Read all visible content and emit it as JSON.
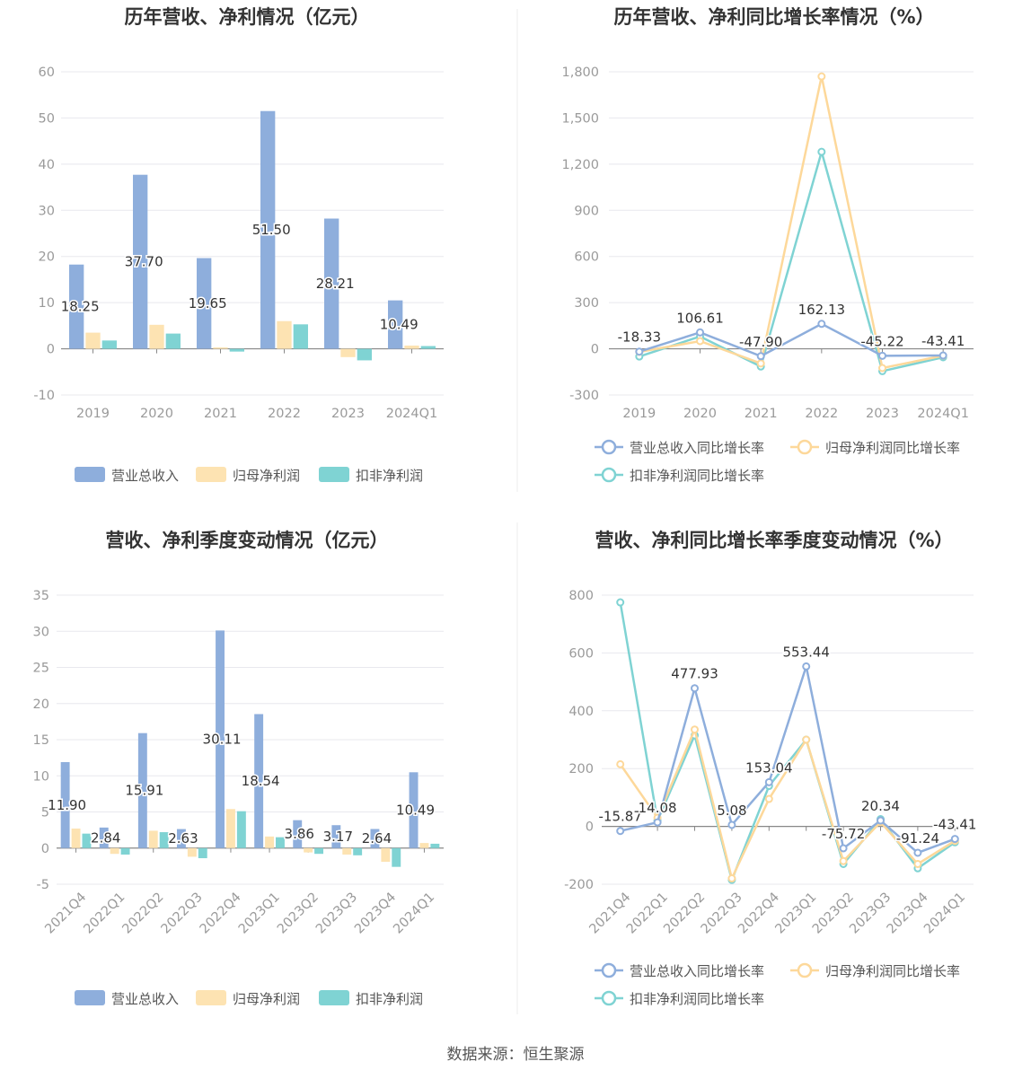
{
  "source": "数据来源：恒生聚源",
  "colors": {
    "revenue": "#8eaedc",
    "parent_np": "#fde3b2",
    "deducted_np": "#7fd3d3",
    "revenue_line": "#8eaedc",
    "parent_line": "#fdd89a",
    "deducted_line": "#7fd3d3",
    "axis": "#9a9a9a",
    "grid": "#e8e8ee",
    "title": "#333333"
  },
  "chart_data": [
    {
      "id": "annual-amount",
      "type": "bar",
      "title": "历年营收、净利情况（亿元）",
      "categories": [
        "2019",
        "2020",
        "2021",
        "2022",
        "2023",
        "2024Q1"
      ],
      "yticks": [
        "60",
        "50",
        "40",
        "30",
        "20",
        "10",
        "0",
        "-10"
      ],
      "ylim": [
        -10,
        60
      ],
      "series": [
        {
          "name": "营业总收入",
          "values": [
            18.25,
            37.7,
            19.65,
            51.5,
            28.21,
            10.49
          ]
        },
        {
          "name": "归母净利润",
          "values": [
            3.5,
            5.2,
            0.3,
            6.0,
            -1.8,
            0.7
          ]
        },
        {
          "name": "扣非净利润",
          "values": [
            1.8,
            3.3,
            -0.6,
            5.3,
            -2.5,
            0.6
          ]
        }
      ],
      "data_labels": [
        "18.25",
        "37.70",
        "19.65",
        "51.50",
        "28.21",
        "10.49"
      ],
      "legend": "bottom"
    },
    {
      "id": "annual-growth",
      "type": "line",
      "title": "历年营收、净利同比增长率情况（%）",
      "categories": [
        "2019",
        "2020",
        "2021",
        "2022",
        "2023",
        "2024Q1"
      ],
      "yticks": [
        "1,800",
        "1,500",
        "1,200",
        "900",
        "600",
        "300",
        "0",
        "-300"
      ],
      "ylim": [
        -300,
        1800
      ],
      "series": [
        {
          "name": "营业总收入同比增长率",
          "values": [
            -18.33,
            106.61,
            -47.9,
            162.13,
            -45.22,
            -43.41
          ]
        },
        {
          "name": "归母净利润同比增长率",
          "values": [
            -20,
            50,
            -95,
            1770,
            -125,
            -45
          ]
        },
        {
          "name": "扣非净利润同比增长率",
          "values": [
            -50,
            80,
            -115,
            1280,
            -145,
            -55
          ]
        }
      ],
      "data_labels": [
        "-18.33",
        "106.61",
        "-47.90",
        "162.13",
        "-45.22",
        "-43.41"
      ],
      "legend": "bottom"
    },
    {
      "id": "quarterly-amount",
      "type": "bar",
      "title": "营收、净利季度变动情况（亿元）",
      "categories": [
        "2021Q4",
        "2022Q1",
        "2022Q2",
        "2022Q3",
        "2022Q4",
        "2023Q1",
        "2023Q2",
        "2023Q3",
        "2023Q4",
        "2024Q1"
      ],
      "yticks": [
        "35",
        "30",
        "25",
        "20",
        "15",
        "10",
        "5",
        "0",
        "-5"
      ],
      "ylim": [
        -5,
        35
      ],
      "series": [
        {
          "name": "营业总收入",
          "values": [
            11.9,
            2.84,
            15.91,
            2.63,
            30.11,
            18.54,
            3.86,
            3.17,
            2.64,
            10.49
          ]
        },
        {
          "name": "归母净利润",
          "values": [
            2.7,
            -0.8,
            2.4,
            -1.2,
            5.4,
            1.6,
            -0.6,
            -0.9,
            -1.9,
            0.7
          ]
        },
        {
          "name": "扣非净利润",
          "values": [
            2.0,
            -0.9,
            2.2,
            -1.4,
            5.1,
            1.5,
            -0.8,
            -1.0,
            -2.6,
            0.6
          ]
        }
      ],
      "data_labels": [
        "11.90",
        "2.84",
        "15.91",
        "2.63",
        "30.11",
        "18.54",
        "3.86",
        "3.17",
        "2.64",
        "10.49"
      ],
      "legend": "bottom"
    },
    {
      "id": "quarterly-growth",
      "type": "line",
      "title": "营收、净利同比增长率季度变动情况（%）",
      "categories": [
        "2021Q4",
        "2022Q1",
        "2022Q2",
        "2022Q3",
        "2022Q4",
        "2023Q1",
        "2023Q2",
        "2023Q3",
        "2023Q4",
        "2024Q1"
      ],
      "yticks": [
        "800",
        "600",
        "400",
        "200",
        "0",
        "-200"
      ],
      "ylim": [
        -200,
        800
      ],
      "series": [
        {
          "name": "营业总收入同比增长率",
          "values": [
            -15.87,
            14.08,
            477.93,
            5.08,
            153.04,
            553.44,
            -75.72,
            20.34,
            -91.24,
            -43.41
          ]
        },
        {
          "name": "归母净利润同比增长率",
          "values": [
            215,
            30,
            335,
            -180,
            95,
            300,
            -120,
            15,
            -130,
            -50
          ]
        },
        {
          "name": "扣非净利润同比增长率",
          "values": [
            775,
            20,
            315,
            -185,
            140,
            300,
            -130,
            25,
            -145,
            -55
          ]
        }
      ],
      "data_labels": [
        "-15.87",
        "14.08",
        "477.93",
        "5.08",
        "153.04",
        "553.44",
        "-75.72",
        "20.34",
        "-91.24",
        "-43.41"
      ],
      "legend": "bottom"
    }
  ]
}
